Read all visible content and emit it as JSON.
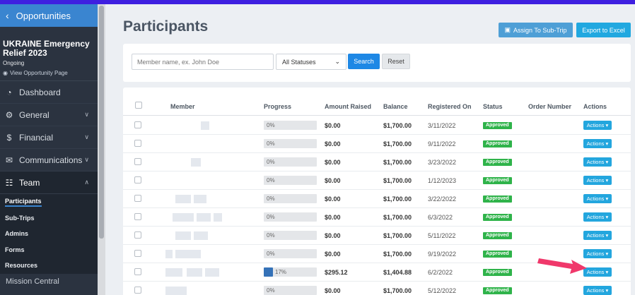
{
  "sidebar": {
    "back_label": "Opportunities",
    "org_title": "UKRAINE Emergency Relief 2023",
    "org_status": "Ongoing",
    "view_link": "View Opportunity Page",
    "nav": [
      {
        "label": "Dashboard",
        "icon": "dashboard-icon"
      },
      {
        "label": "General",
        "icon": "gear-icon"
      },
      {
        "label": "Financial",
        "icon": "dollar-icon"
      },
      {
        "label": "Communications",
        "icon": "mail-icon"
      },
      {
        "label": "Team",
        "icon": "team-icon"
      }
    ],
    "team_items": [
      "Participants",
      "Sub-Trips",
      "Admins",
      "Forms",
      "Resources"
    ],
    "bottom_label": "Mission Central"
  },
  "header": {
    "title": "Participants",
    "assign_label": "Assign To Sub-Trip",
    "export_label": "Export to Excel"
  },
  "filters": {
    "search_placeholder": "Member name, ex. John Doe",
    "status_value": "All Statuses",
    "search_label": "Search",
    "reset_label": "Reset"
  },
  "table": {
    "columns": [
      "Member",
      "Progress",
      "Amount Raised",
      "Balance",
      "Registered On",
      "Status",
      "Order Number",
      "Actions"
    ],
    "rows": [
      {
        "progress": "0%",
        "progress_value": 0,
        "amount": "$0.00",
        "balance": "$1,700.00",
        "date": "3/11/2022",
        "status": "Approved",
        "action": "Actions"
      },
      {
        "progress": "0%",
        "progress_value": 0,
        "amount": "$0.00",
        "balance": "$1,700.00",
        "date": "9/11/2022",
        "status": "Approved",
        "action": "Actions"
      },
      {
        "progress": "0%",
        "progress_value": 0,
        "amount": "$0.00",
        "balance": "$1,700.00",
        "date": "3/23/2022",
        "status": "Approved",
        "action": "Actions"
      },
      {
        "progress": "0%",
        "progress_value": 0,
        "amount": "$0.00",
        "balance": "$1,700.00",
        "date": "1/12/2023",
        "status": "Approved",
        "action": "Actions"
      },
      {
        "progress": "0%",
        "progress_value": 0,
        "amount": "$0.00",
        "balance": "$1,700.00",
        "date": "3/22/2022",
        "status": "Approved",
        "action": "Actions"
      },
      {
        "progress": "0%",
        "progress_value": 0,
        "amount": "$0.00",
        "balance": "$1,700.00",
        "date": "6/3/2022",
        "status": "Approved",
        "action": "Actions"
      },
      {
        "progress": "0%",
        "progress_value": 0,
        "amount": "$0.00",
        "balance": "$1,700.00",
        "date": "5/11/2022",
        "status": "Approved",
        "action": "Actions"
      },
      {
        "progress": "0%",
        "progress_value": 0,
        "amount": "$0.00",
        "balance": "$1,700.00",
        "date": "9/19/2022",
        "status": "Approved",
        "action": "Actions"
      },
      {
        "progress": "17%",
        "progress_value": 17,
        "amount": "$295.12",
        "balance": "$1,404.88",
        "date": "6/2/2022",
        "status": "Approved",
        "action": "Actions"
      },
      {
        "progress": "0%",
        "progress_value": 0,
        "amount": "$0.00",
        "balance": "$1,700.00",
        "date": "5/12/2022",
        "status": "Approved",
        "action": "Actions"
      }
    ]
  },
  "colors": {
    "accent": "#21a8e0",
    "approved": "#2fb34a",
    "sidebar": "#2b3340",
    "annotation_arrow": "#f0386b"
  }
}
